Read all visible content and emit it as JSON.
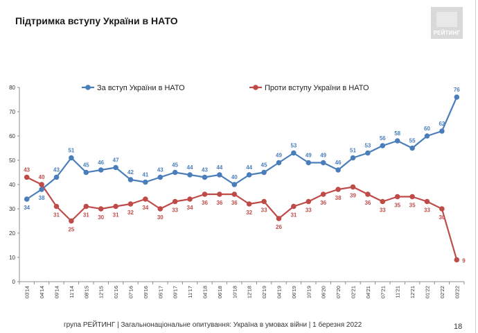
{
  "title": "Підтримка вступу України в НАТО",
  "logo_text": "РЕЙТИНГ",
  "footer": "група РЕЙТИНГ | Загальнонаціональне опитування: Україна в умовах війни | 1 березня 2022",
  "page_number": "18",
  "colors": {
    "for": "#4a7ebb",
    "against": "#be4b48"
  },
  "chart_data": {
    "type": "line",
    "categories": [
      "03'14",
      "04'14",
      "09'14",
      "11'14",
      "08'15",
      "12'15",
      "01'16",
      "07'16",
      "09'16",
      "05'17",
      "09'17",
      "11'17",
      "04'18",
      "06'18",
      "10'18",
      "12'18",
      "02'19",
      "04'19",
      "06'19",
      "10'19",
      "06'20",
      "07'20",
      "02'21",
      "04'21",
      "07'21",
      "11'21",
      "12'21",
      "01'22",
      "02'22",
      "03'22"
    ],
    "series": [
      {
        "name": "За вступ України в НАТО",
        "values": [
          34,
          38,
          43,
          51,
          45,
          46,
          47,
          42,
          41,
          43,
          45,
          44,
          43,
          44,
          40,
          44,
          45,
          49,
          53,
          49,
          49,
          46,
          51,
          53,
          56,
          58,
          55,
          60,
          62,
          76
        ]
      },
      {
        "name": "Проти вступу України в НАТО",
        "values": [
          43,
          40,
          31,
          25,
          31,
          30,
          31,
          32,
          34,
          30,
          33,
          34,
          36,
          36,
          36,
          32,
          33,
          26,
          31,
          33,
          36,
          38,
          39,
          36,
          33,
          35,
          35,
          33,
          30,
          9
        ]
      }
    ],
    "ylim": [
      0,
      80
    ],
    "yticks": [
      0,
      10,
      20,
      30,
      40,
      50,
      60,
      70,
      80
    ],
    "legend": "top",
    "grid": false
  }
}
